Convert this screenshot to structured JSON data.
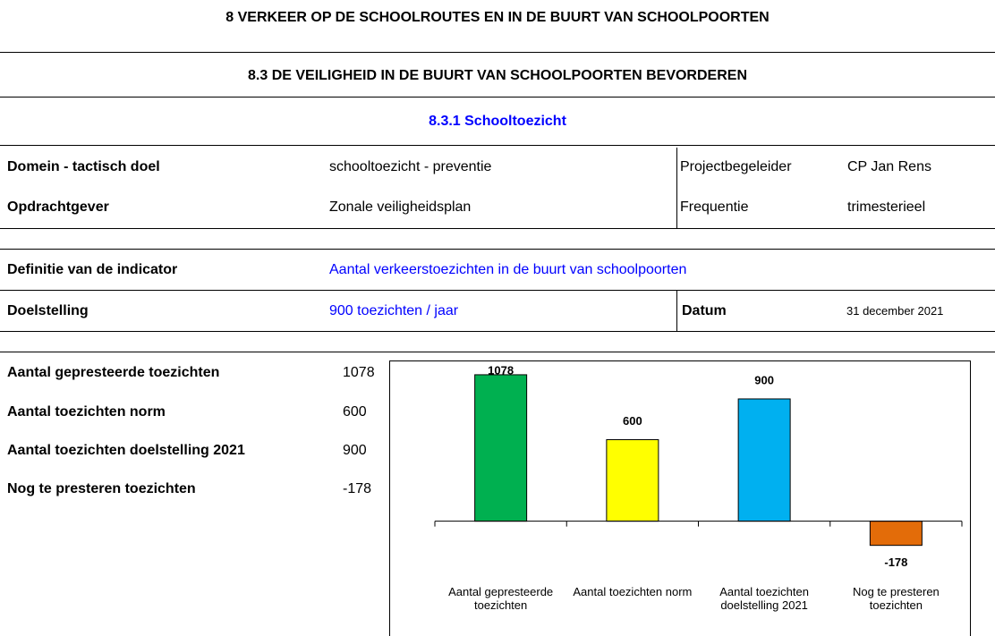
{
  "header": {
    "title": "8 VERKEER OP DE SCHOOLROUTES EN IN DE BUURT VAN SCHOOLPOORTEN",
    "section": "8.3 DE VEILIGHEID IN DE BUURT VAN SCHOOLPOORTEN BEVORDEREN",
    "subsection": "8.3.1 Schooltoezicht"
  },
  "info": [
    {
      "label": "Domein - tactisch doel",
      "value": "schooltoezicht - preventie",
      "label2": "Projectbegeleider",
      "value2": "CP Jan Rens"
    },
    {
      "label": "Opdrachtgever",
      "value": "Zonale veiligheidsplan",
      "label2": "Frequentie",
      "value2": "trimesterieel"
    }
  ],
  "indicator": {
    "definition_label": "Definitie van de indicator",
    "definition": "Aantal verkeerstoezichten in de buurt van schoolpoorten",
    "target_label": "Doelstelling",
    "target": "900 toezichten / jaar",
    "date_label": "Datum",
    "date": "31 december 2021"
  },
  "summary": {
    "rows": [
      [
        "Aantal gepresteerde toezichten",
        1078
      ],
      [
        "Aantal toezichten norm",
        600
      ],
      [
        "Aantal toezichten doelstelling 2021",
        900
      ],
      [
        "Nog te presteren toezichten",
        -178
      ]
    ]
  },
  "chart_data": {
    "type": "bar",
    "categories": [
      "Aantal gepresteerde toezichten",
      "Aantal toezichten norm",
      "Aantal toezichten doelstelling 2021",
      "Nog te presteren toezichten"
    ],
    "values": [
      1078,
      600,
      900,
      -178
    ],
    "colors": [
      "#00b050",
      "#ffff00",
      "#00b0f0",
      "#e36c09"
    ],
    "ylim": [
      -200,
      1150
    ],
    "grid": false
  }
}
